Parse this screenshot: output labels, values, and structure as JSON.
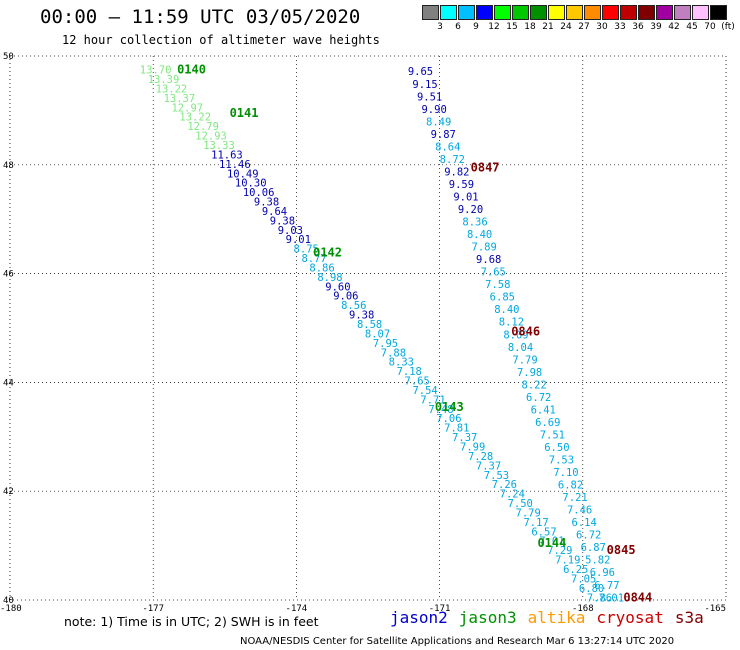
{
  "title": "00:00 – 11:59 UTC 03/05/2020",
  "subtitle": "12 hour collection of altimeter wave heights",
  "legend": {
    "labels": [
      "3",
      "6",
      "9",
      "12",
      "15",
      "18",
      "21",
      "24",
      "27",
      "30",
      "33",
      "36",
      "39",
      "42",
      "45",
      "70",
      "(ft)"
    ],
    "colors": [
      "#808080",
      "#00ffff",
      "#00c0ff",
      "#0000ff",
      "#00ff00",
      "#00c800",
      "#009000",
      "#ffff00",
      "#ffc800",
      "#ff8c00",
      "#ff0000",
      "#c00000",
      "#800000",
      "#a000a0",
      "#c080c0",
      "#ffc0ff",
      "#000000"
    ]
  },
  "note": "note: 1) Time is in UTC; 2) SWH is in feet",
  "satellites": [
    {
      "name": "jason2",
      "color": "#0000cc"
    },
    {
      "name": "jason3",
      "color": "#009000"
    },
    {
      "name": "altika",
      "color": "#ff9900"
    },
    {
      "name": "cryosat",
      "color": "#cc0000"
    },
    {
      "name": "s3a",
      "color": "#800000"
    }
  ],
  "credit": "NOAA/NESDIS Center for Satellite Applications and Research   Mar  6 13:27:14 UTC 2020",
  "map": {
    "lon_range": [
      -180,
      -165
    ],
    "lat_range": [
      40,
      50
    ],
    "lat_ticks": [
      "50",
      "48",
      "46",
      "44",
      "42",
      "40"
    ],
    "lon_ticks": [
      "-180",
      "-177",
      "-174",
      "-171",
      "-168",
      "-165"
    ],
    "times": [
      {
        "label": "0140",
        "lon": -176.5,
        "lat": 49.75,
        "color": "#009000"
      },
      {
        "label": "0141",
        "lon": -175.4,
        "lat": 48.95,
        "color": "#009000"
      },
      {
        "label": "0142",
        "lon": -173.65,
        "lat": 46.39,
        "color": "#009000"
      },
      {
        "label": "0143",
        "lon": -171.1,
        "lat": 43.55,
        "color": "#009000"
      },
      {
        "label": "0144",
        "lon": -168.95,
        "lat": 41.05,
        "color": "#009000"
      },
      {
        "label": "0847",
        "lon": -170.35,
        "lat": 47.95,
        "color": "#800000"
      },
      {
        "label": "0846",
        "lon": -169.5,
        "lat": 44.94,
        "color": "#800000"
      },
      {
        "label": "0845",
        "lon": -167.5,
        "lat": 40.92,
        "color": "#800000"
      },
      {
        "label": "0844",
        "lon": -167.15,
        "lat": 40.05,
        "color": "#800000"
      }
    ],
    "tracks": [
      {
        "start": [
          -176.95,
          49.75
        ],
        "end": [
          -167.65,
          40.05
        ],
        "values": [
          {
            "v": "13.70",
            "c": "#7ee87e"
          },
          {
            "v": "13.39",
            "c": "#7ee87e"
          },
          {
            "v": "13.22",
            "c": "#7ee87e"
          },
          {
            "v": "13.37",
            "c": "#7ee87e"
          },
          {
            "v": "12.97",
            "c": "#7ee87e"
          },
          {
            "v": "13.22",
            "c": "#7ee87e"
          },
          {
            "v": "12.79",
            "c": "#7ee87e"
          },
          {
            "v": "12.93",
            "c": "#7ee87e"
          },
          {
            "v": "13.33",
            "c": "#7ee87e"
          },
          {
            "v": "11.63",
            "c": "#0000b0"
          },
          {
            "v": "11.46",
            "c": "#0000b0"
          },
          {
            "v": "10.49",
            "c": "#0000b0"
          },
          {
            "v": "10.30",
            "c": "#0000b0"
          },
          {
            "v": "10.06",
            "c": "#0000b0"
          },
          {
            "v": "9.38",
            "c": "#0000b0"
          },
          {
            "v": "9.64",
            "c": "#0000b0"
          },
          {
            "v": "9.38",
            "c": "#0000b0"
          },
          {
            "v": "9.03",
            "c": "#0000b0"
          },
          {
            "v": "9.01",
            "c": "#0000b0"
          },
          {
            "v": "8.75",
            "c": "#00a8e0"
          },
          {
            "v": "8.77",
            "c": "#00a8e0"
          },
          {
            "v": "8.86",
            "c": "#00a8e0"
          },
          {
            "v": "8.98",
            "c": "#00a8e0"
          },
          {
            "v": "9.60",
            "c": "#0000b0"
          },
          {
            "v": "9.06",
            "c": "#0000b0"
          },
          {
            "v": "8.56",
            "c": "#00a8e0"
          },
          {
            "v": "9.38",
            "c": "#0000b0"
          },
          {
            "v": "8.58",
            "c": "#00a8e0"
          },
          {
            "v": "8.07",
            "c": "#00a8e0"
          },
          {
            "v": "7.95",
            "c": "#00a8e0"
          },
          {
            "v": "7.88",
            "c": "#00a8e0"
          },
          {
            "v": "8.33",
            "c": "#00a8e0"
          },
          {
            "v": "7.18",
            "c": "#00a8e0"
          },
          {
            "v": "7.65",
            "c": "#00a8e0"
          },
          {
            "v": "7.54",
            "c": "#00a8e0"
          },
          {
            "v": "7.71",
            "c": "#00a8e0"
          },
          {
            "v": "7.48",
            "c": "#00a8e0"
          },
          {
            "v": "7.06",
            "c": "#00a8e0"
          },
          {
            "v": "7.81",
            "c": "#00a8e0"
          },
          {
            "v": "7.37",
            "c": "#00a8e0"
          },
          {
            "v": "7.99",
            "c": "#00a8e0"
          },
          {
            "v": "7.28",
            "c": "#00a8e0"
          },
          {
            "v": "7.37",
            "c": "#00a8e0"
          },
          {
            "v": "7.53",
            "c": "#00a8e0"
          },
          {
            "v": "7.26",
            "c": "#00a8e0"
          },
          {
            "v": "7.24",
            "c": "#00a8e0"
          },
          {
            "v": "7.50",
            "c": "#00a8e0"
          },
          {
            "v": "7.79",
            "c": "#00a8e0"
          },
          {
            "v": "7.17",
            "c": "#00a8e0"
          },
          {
            "v": "6.57",
            "c": "#00a8e0"
          },
          {
            "v": "7.01",
            "c": "#00a8e0"
          },
          {
            "v": "7.29",
            "c": "#00a8e0"
          },
          {
            "v": "7.19",
            "c": "#00a8e0"
          },
          {
            "v": "6.25",
            "c": "#00a8e0"
          },
          {
            "v": "7.05",
            "c": "#00a8e0"
          },
          {
            "v": "6.80",
            "c": "#00a8e0"
          },
          {
            "v": "7.86",
            "c": "#00a8e0"
          }
        ]
      },
      {
        "start": [
          -171.4,
          49.72
        ],
        "end": [
          -167.4,
          40.05
        ],
        "values": [
          {
            "v": "9.65",
            "c": "#0000b0"
          },
          {
            "v": "9.15",
            "c": "#0000b0"
          },
          {
            "v": "9.51",
            "c": "#0000b0"
          },
          {
            "v": "9.90",
            "c": "#0000b0"
          },
          {
            "v": "8.49",
            "c": "#00a8e0"
          },
          {
            "v": "9.87",
            "c": "#0000b0"
          },
          {
            "v": "8.64",
            "c": "#00a8e0"
          },
          {
            "v": "8.72",
            "c": "#00a8e0"
          },
          {
            "v": "9.82",
            "c": "#0000b0"
          },
          {
            "v": "9.59",
            "c": "#0000b0"
          },
          {
            "v": "9.01",
            "c": "#0000b0"
          },
          {
            "v": "9.20",
            "c": "#0000b0"
          },
          {
            "v": "8.36",
            "c": "#00a8e0"
          },
          {
            "v": "8.40",
            "c": "#00a8e0"
          },
          {
            "v": "7.89",
            "c": "#00a8e0"
          },
          {
            "v": "9.68",
            "c": "#0000b0"
          },
          {
            "v": "7.65",
            "c": "#00a8e0"
          },
          {
            "v": "7.58",
            "c": "#00a8e0"
          },
          {
            "v": "6.85",
            "c": "#00a8e0"
          },
          {
            "v": "8.40",
            "c": "#00a8e0"
          },
          {
            "v": "8.12",
            "c": "#00a8e0"
          },
          {
            "v": "8.09",
            "c": "#00a8e0"
          },
          {
            "v": "8.04",
            "c": "#00a8e0"
          },
          {
            "v": "7.79",
            "c": "#00a8e0"
          },
          {
            "v": "7.98",
            "c": "#00a8e0"
          },
          {
            "v": "8.22",
            "c": "#00a8e0"
          },
          {
            "v": "6.72",
            "c": "#00a8e0"
          },
          {
            "v": "6.41",
            "c": "#00a8e0"
          },
          {
            "v": "6.69",
            "c": "#00a8e0"
          },
          {
            "v": "7.51",
            "c": "#00a8e0"
          },
          {
            "v": "6.50",
            "c": "#00a8e0"
          },
          {
            "v": "7.53",
            "c": "#00a8e0"
          },
          {
            "v": "7.10",
            "c": "#00a8e0"
          },
          {
            "v": "6.82",
            "c": "#00a8e0"
          },
          {
            "v": "7.21",
            "c": "#00a8e0"
          },
          {
            "v": "7.46",
            "c": "#00a8e0"
          },
          {
            "v": "6.14",
            "c": "#00a8e0"
          },
          {
            "v": "6.72",
            "c": "#00a8e0"
          },
          {
            "v": "6.87",
            "c": "#00a8e0"
          },
          {
            "v": "5.82",
            "c": "#00a8e0"
          },
          {
            "v": "6.96",
            "c": "#00a8e0"
          },
          {
            "v": "6.77",
            "c": "#00a8e0"
          },
          {
            "v": "7.01",
            "c": "#00a8e0"
          }
        ]
      }
    ]
  }
}
